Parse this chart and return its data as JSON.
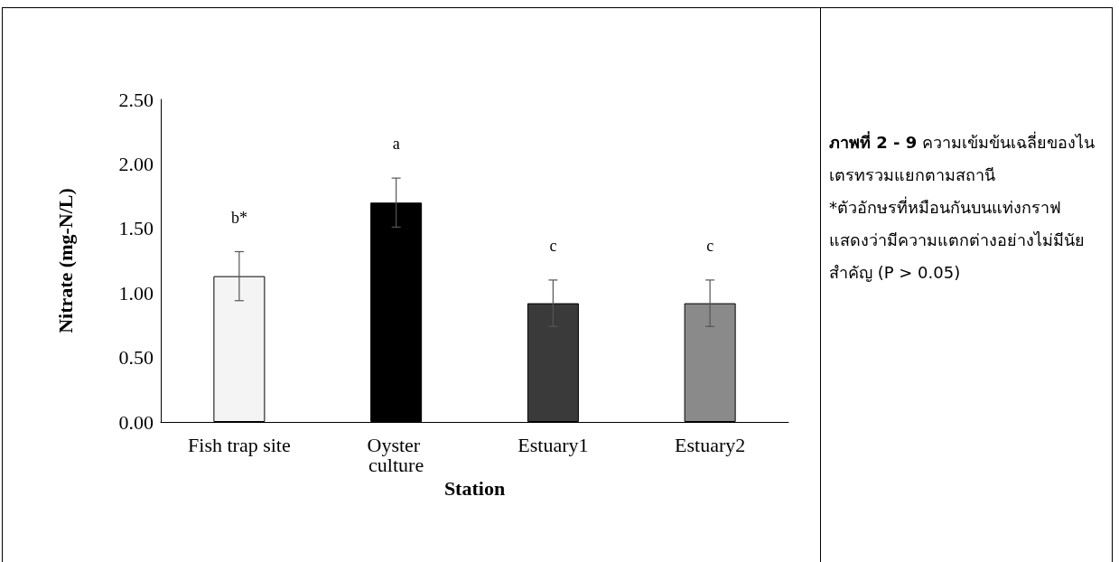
{
  "chart_data": {
    "type": "bar",
    "title": "ภาพที่ 2 - 9",
    "xlabel": "Station",
    "ylabel": "Nitrate (mg-N/L)",
    "categories": [
      "Fish trap site",
      "Oyster culture",
      "Estuary1",
      "Estuary2"
    ],
    "values": [
      1.13,
      1.7,
      0.92,
      0.92
    ],
    "colors": [
      "#f4f4f4",
      "#000000",
      "#3a3a3a",
      "#8a8a8a"
    ],
    "errors": [
      0.19,
      0.19,
      0.18,
      0.18
    ],
    "ylim": [
      0,
      2.5
    ],
    "yticks": [
      {
        "value": 0,
        "label": "0.00"
      },
      {
        "value": 0.5,
        "label": "0.50"
      },
      {
        "value": 1,
        "label": "1.00"
      },
      {
        "value": 1.5,
        "label": "1.50"
      },
      {
        "value": 2,
        "label": "2.00"
      },
      {
        "value": 2.5,
        "label": "2.50"
      }
    ],
    "value_labels": [
      "b*",
      "a",
      "c",
      "c"
    ],
    "grid": false,
    "annotations": [
      "ความเข้มข้นเฉลี่ยของไนเตรทรวมแยกตามสถานี",
      "*ตัวอักษรที่หมือนกันบนแท่งกราฟแสดงว่ามีความแตกต่างอย่างไม่มีนัยสำคัญ (P > 0.05)"
    ]
  }
}
